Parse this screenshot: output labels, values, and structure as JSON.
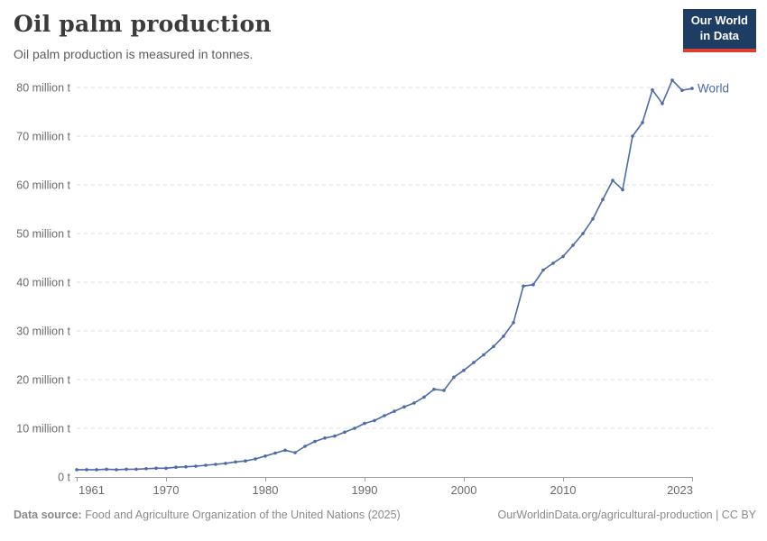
{
  "header": {
    "title": "Oil palm production",
    "subtitle": "Oil palm production is measured in tonnes."
  },
  "logo": {
    "line1": "Our World",
    "line2": "in Data",
    "bg_color": "#1d3d63",
    "accent_color": "#dc3e34",
    "text_color": "#ffffff"
  },
  "chart_data": {
    "type": "line",
    "title": "Oil palm production",
    "unit": "tonnes",
    "values_unit": "million tonnes",
    "grid": "horizontal dashed",
    "legend_position": "end-of-line label",
    "xlim": [
      1961,
      2023
    ],
    "ylim": [
      0,
      82
    ],
    "xticks": [
      1961,
      1970,
      1980,
      1990,
      2000,
      2010,
      2023
    ],
    "yticks": [
      {
        "value": 0,
        "label": "0 t"
      },
      {
        "value": 10,
        "label": "10 million t"
      },
      {
        "value": 20,
        "label": "20 million t"
      },
      {
        "value": 30,
        "label": "30 million t"
      },
      {
        "value": 40,
        "label": "40 million t"
      },
      {
        "value": 50,
        "label": "50 million t"
      },
      {
        "value": 60,
        "label": "60 million t"
      },
      {
        "value": 70,
        "label": "70 million t"
      },
      {
        "value": 80,
        "label": "80 million t"
      }
    ],
    "x": [
      1961,
      1962,
      1963,
      1964,
      1965,
      1966,
      1967,
      1968,
      1969,
      1970,
      1971,
      1972,
      1973,
      1974,
      1975,
      1976,
      1977,
      1978,
      1979,
      1980,
      1981,
      1982,
      1983,
      1984,
      1985,
      1986,
      1987,
      1988,
      1989,
      1990,
      1991,
      1992,
      1993,
      1994,
      1995,
      1996,
      1997,
      1998,
      1999,
      2000,
      2001,
      2002,
      2003,
      2004,
      2005,
      2006,
      2007,
      2008,
      2009,
      2010,
      2011,
      2012,
      2013,
      2014,
      2015,
      2016,
      2017,
      2018,
      2019,
      2020,
      2021,
      2022,
      2023
    ],
    "series": [
      {
        "name": "World",
        "color": "#4c6ba7",
        "values": [
          1.5,
          1.5,
          1.5,
          1.6,
          1.5,
          1.6,
          1.6,
          1.7,
          1.8,
          1.8,
          2.0,
          2.1,
          2.2,
          2.4,
          2.6,
          2.8,
          3.1,
          3.3,
          3.7,
          4.3,
          4.9,
          5.5,
          5.0,
          6.3,
          7.3,
          8.0,
          8.4,
          9.2,
          10.0,
          11.0,
          11.6,
          12.6,
          13.5,
          14.4,
          15.2,
          16.4,
          18.0,
          17.8,
          20.5,
          21.9,
          23.5,
          25.1,
          26.8,
          28.9,
          31.7,
          39.2,
          39.5,
          42.5,
          43.9,
          45.3,
          47.6,
          50.0,
          53.0,
          57.0,
          60.9,
          59.0,
          70.0,
          72.8,
          79.5,
          76.7,
          81.5,
          79.4,
          79.8
        ]
      }
    ]
  },
  "entity_label": "World",
  "footer": {
    "source_label": "Data source:",
    "source_text": " Food and Agriculture Organization of the United Nations (2025)",
    "link_text": "OurWorldinData.org/agricultural-production | CC BY"
  },
  "colors": {
    "line": "#4c6ba7",
    "grid": "#dcdcdc",
    "axis": "#9e9e9e",
    "tick_text": "#6b6b6b",
    "title": "#3b3b3b",
    "subtitle": "#5c5c5c",
    "footer": "#8a8a8a"
  }
}
